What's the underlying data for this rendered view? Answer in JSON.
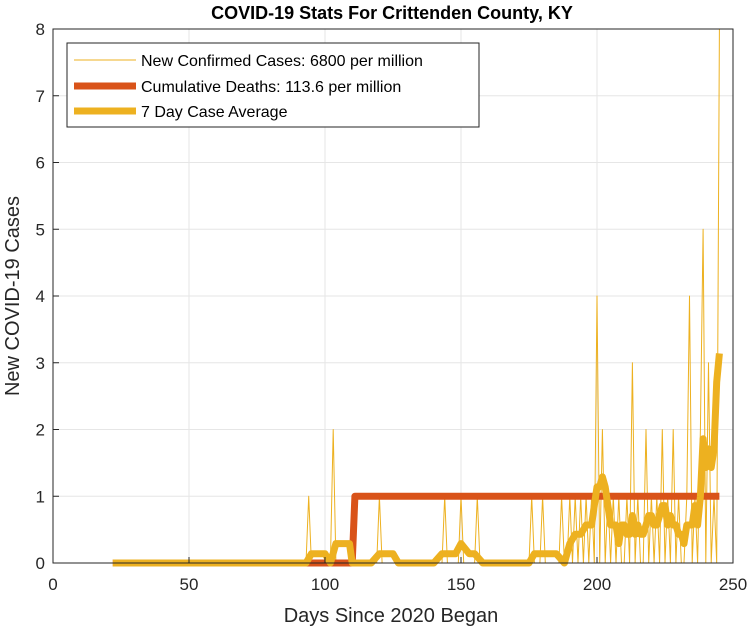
{
  "chart_data": {
    "type": "line",
    "title": "COVID-19 Stats For Crittenden County, KY",
    "xlabel": "Days Since 2020 Began",
    "ylabel": "New COVID-19 Cases",
    "xlim": [
      0,
      250
    ],
    "ylim": [
      0,
      8
    ],
    "xticks": [
      0,
      50,
      100,
      150,
      200,
      250
    ],
    "yticks": [
      0,
      1,
      2,
      3,
      4,
      5,
      6,
      7,
      8
    ],
    "grid": true,
    "legend_position": "top-left",
    "series": [
      {
        "name": "New Confirmed Cases: 6800 per million",
        "color": "#EDB120",
        "style": "thin",
        "x": [
          22,
          93,
          94,
          95,
          102,
          103,
          104,
          119,
          120,
          121,
          143,
          144,
          145,
          149,
          150,
          151,
          155,
          156,
          157,
          175,
          176,
          177,
          179,
          180,
          181,
          186,
          187,
          188,
          189,
          190,
          191,
          192,
          193,
          194,
          195,
          196,
          197,
          198,
          199,
          200,
          201,
          202,
          203,
          204,
          205,
          206,
          207,
          208,
          209,
          210,
          211,
          212,
          213,
          214,
          215,
          216,
          217,
          218,
          219,
          220,
          221,
          222,
          223,
          224,
          225,
          226,
          227,
          228,
          229,
          230,
          231,
          232,
          233,
          234,
          235,
          236,
          237,
          238,
          239,
          240,
          241,
          242,
          243,
          244,
          245
        ],
        "y": [
          0,
          0,
          1,
          0,
          0,
          2,
          0,
          0,
          1,
          0,
          0,
          1,
          0,
          0,
          1,
          0,
          0,
          1,
          0,
          0,
          1,
          0,
          0,
          1,
          0,
          0,
          1,
          0,
          0,
          1,
          0,
          1,
          0,
          1,
          0,
          1,
          0,
          1,
          0,
          4,
          0,
          2,
          0,
          1,
          0,
          1,
          0,
          1,
          0,
          0,
          1,
          0,
          3,
          0,
          1,
          0,
          0,
          2,
          0,
          1,
          0,
          1,
          0,
          2,
          0,
          1,
          0,
          2,
          0,
          1,
          0,
          0,
          1,
          4,
          0,
          1,
          0,
          2,
          5,
          0,
          3,
          0,
          1,
          0,
          8
        ]
      },
      {
        "name": "Cumulative Deaths: 113.6 per million",
        "color": "#D95319",
        "style": "thick",
        "x": [
          22,
          108,
          110,
          111,
          245
        ],
        "y": [
          0,
          0,
          0,
          1,
          1
        ]
      },
      {
        "name": "7 Day Case Average",
        "color": "#EDB120",
        "style": "thick",
        "x": [
          22,
          93,
          95,
          100,
          102,
          104,
          109,
          110,
          112,
          117,
          120,
          125,
          127,
          140,
          143,
          148,
          150,
          153,
          155,
          158,
          162,
          175,
          177,
          185,
          188,
          190,
          192,
          194,
          196,
          198,
          199,
          200,
          201,
          202,
          203,
          204,
          205,
          206,
          207,
          208,
          209,
          210,
          211,
          212,
          213,
          214,
          215,
          216,
          217,
          218,
          219,
          220,
          221,
          222,
          223,
          224,
          225,
          226,
          227,
          228,
          229,
          230,
          231,
          232,
          233,
          234,
          235,
          236,
          237,
          238,
          239,
          240,
          241,
          242,
          243,
          244,
          245
        ],
        "y": [
          0,
          0,
          0.14,
          0.14,
          0,
          0.29,
          0.29,
          0,
          0,
          0,
          0.14,
          0.14,
          0,
          0,
          0.14,
          0.14,
          0.29,
          0.14,
          0.14,
          0,
          0,
          0,
          0.14,
          0.14,
          0,
          0.29,
          0.43,
          0.43,
          0.57,
          0.57,
          0.86,
          1.14,
          1.14,
          1.29,
          1.14,
          0.86,
          0.57,
          0.57,
          0.57,
          0.29,
          0.57,
          0.57,
          0.43,
          0.43,
          0.71,
          0.43,
          0.57,
          0.43,
          0.43,
          0.57,
          0.71,
          0.71,
          0.57,
          0.57,
          0.71,
          0.86,
          0.86,
          0.57,
          0.71,
          0.57,
          0.57,
          0.43,
          0.43,
          0.29,
          0.57,
          0.57,
          0.57,
          0.86,
          0.57,
          1,
          1.86,
          1.43,
          1.71,
          1.43,
          1.71,
          2.71,
          3.14
        ]
      }
    ]
  }
}
